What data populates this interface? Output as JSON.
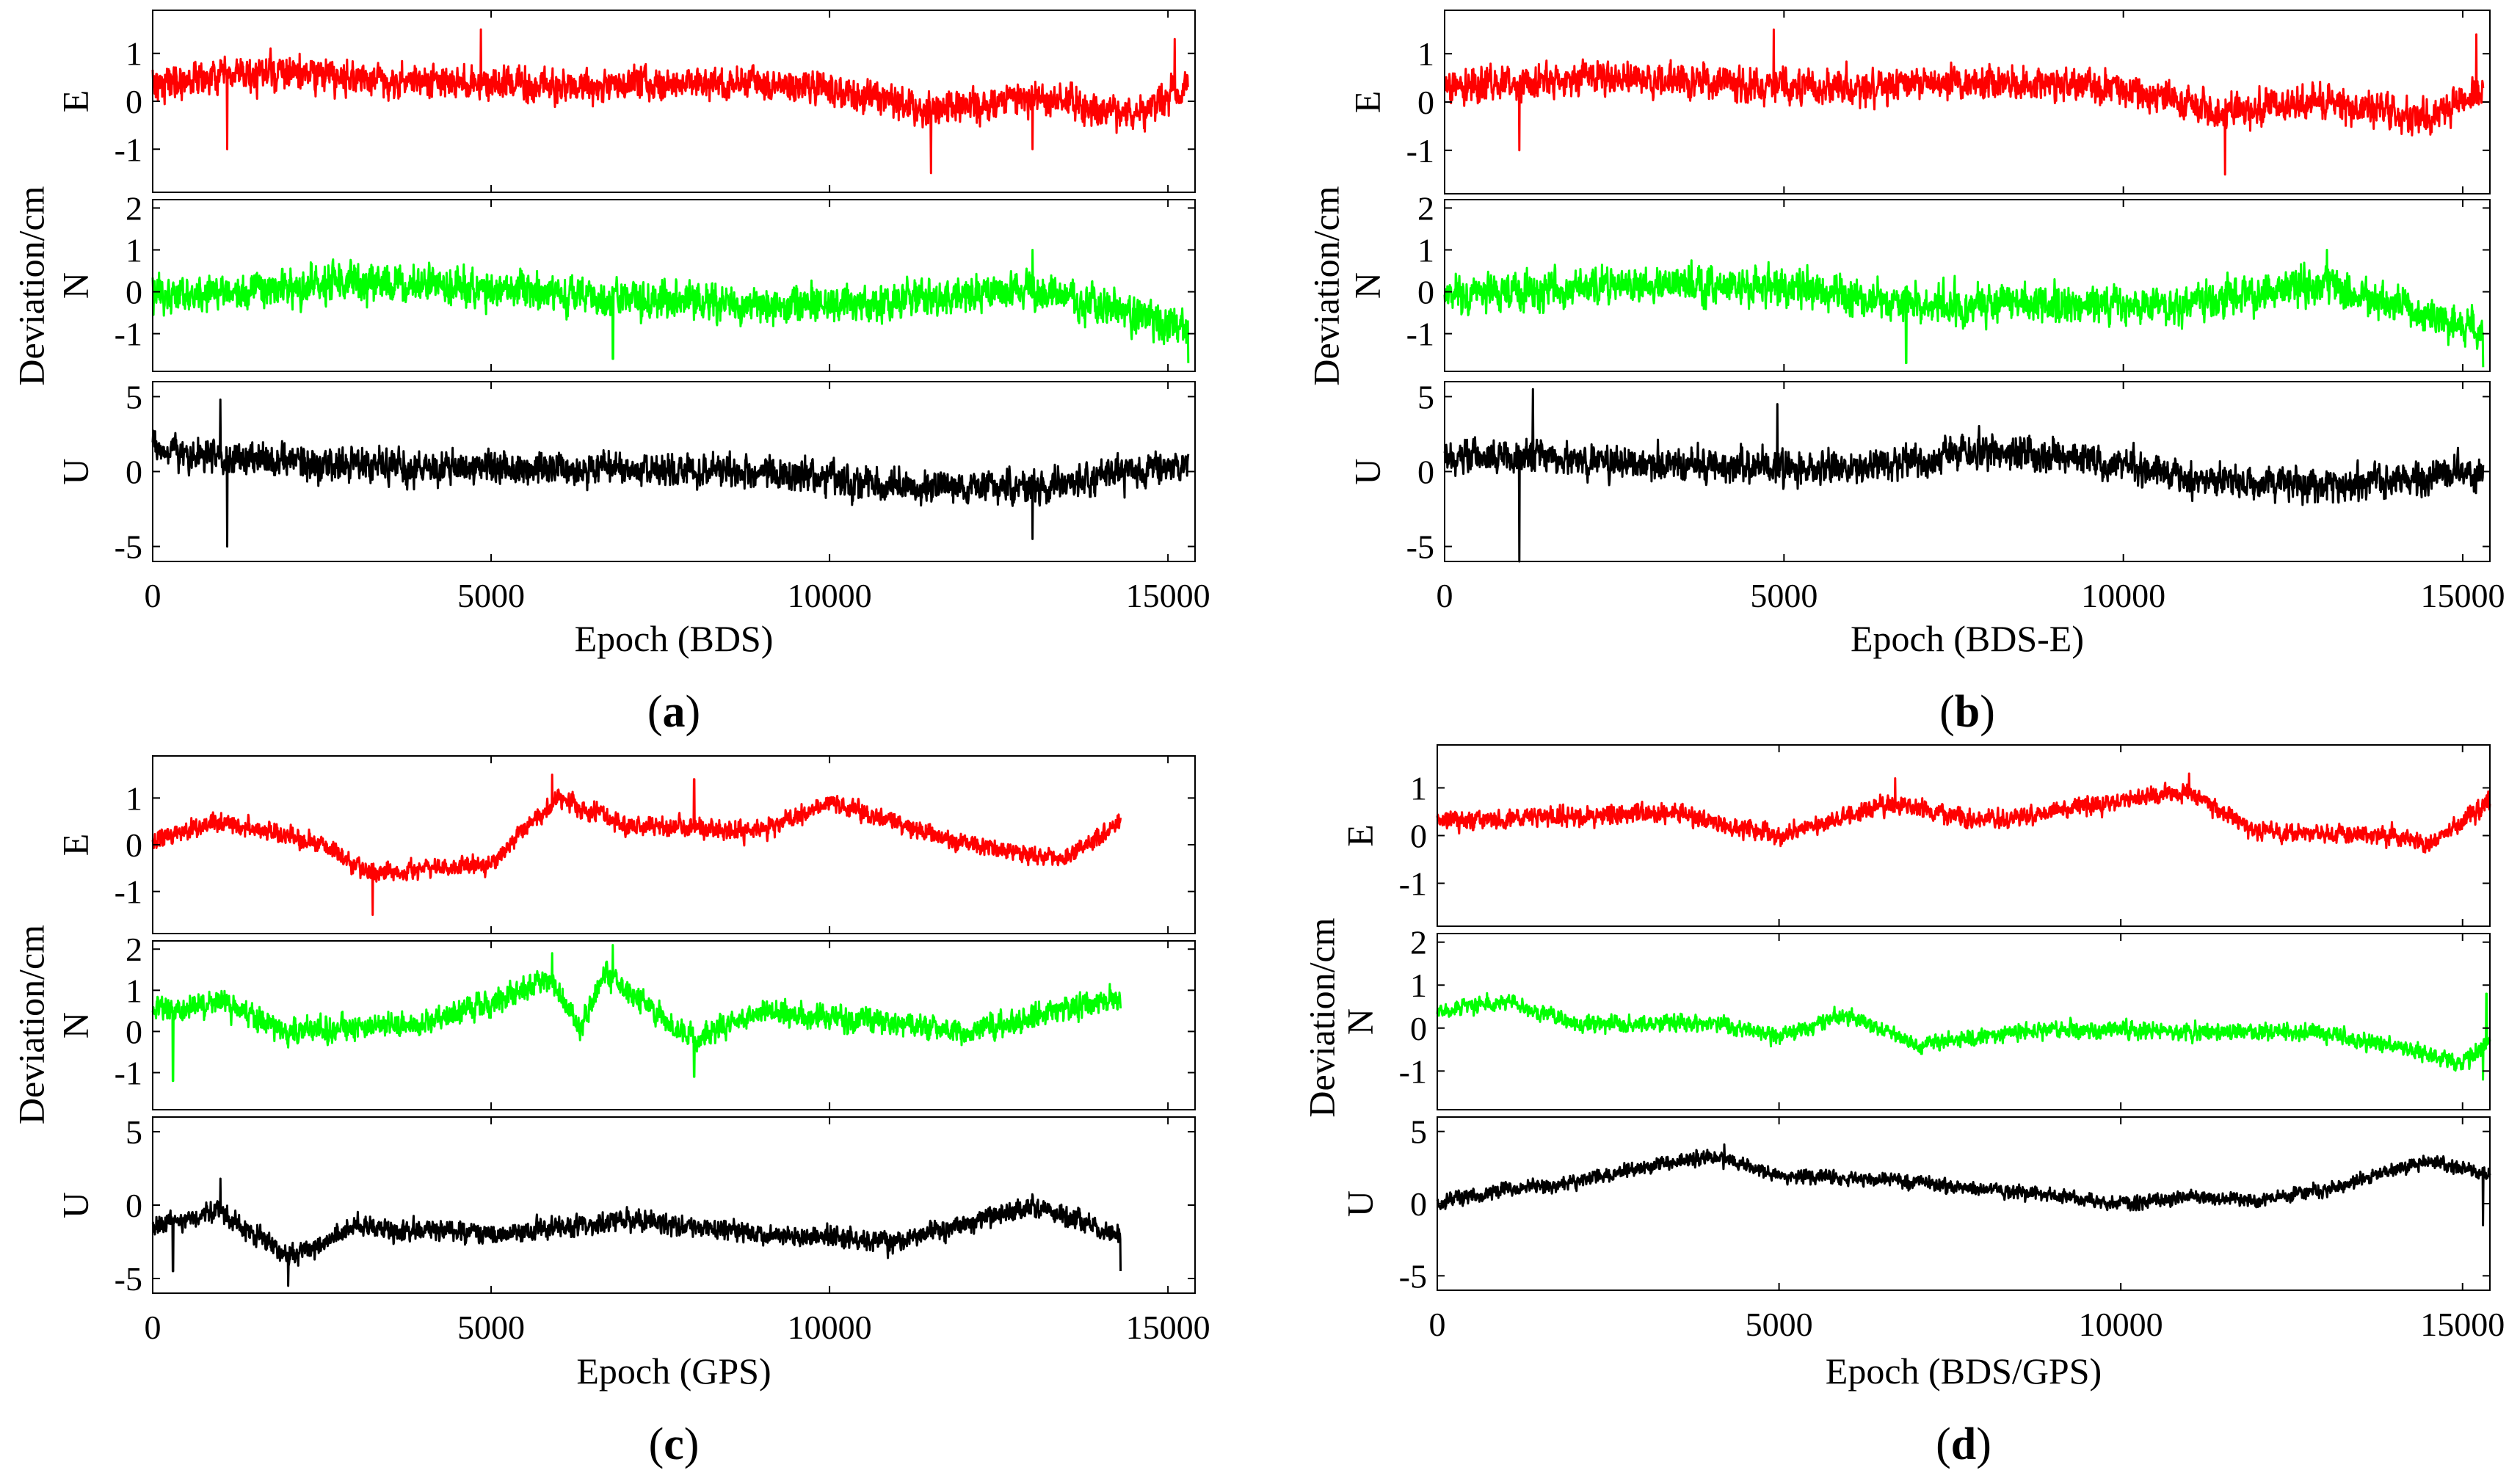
{
  "chart_data": [
    {
      "type": "line",
      "panel_label": "(a)",
      "ylabel": "Deviation/cm",
      "xlabel": "Epoch (BDS)",
      "xlim": [
        0,
        15400
      ],
      "xticks": [
        0,
        5000,
        10000,
        15000
      ],
      "x_end": 15300,
      "series": [
        {
          "name": "E",
          "color": "#ff0000",
          "ylim": [
            -1.9,
            1.9
          ],
          "yticks": [
            -1,
            0,
            1
          ],
          "profile": [
            [
              0,
              0.4
            ],
            [
              2000,
              0.6
            ],
            [
              4000,
              0.4
            ],
            [
              6000,
              0.3
            ],
            [
              8000,
              0.4
            ],
            [
              10000,
              0.3
            ],
            [
              11500,
              -0.2
            ],
            [
              13000,
              0.1
            ],
            [
              14500,
              -0.3
            ],
            [
              15300,
              0.3
            ]
          ],
          "noise": 0.35,
          "spikes": [
            [
              1100,
              -1.0
            ],
            [
              4850,
              1.5
            ],
            [
              11500,
              -1.5
            ],
            [
              13000,
              -1.0
            ],
            [
              15100,
              1.3
            ]
          ]
        },
        {
          "name": "N",
          "color": "#00ff00",
          "ylim": [
            -1.9,
            2.2
          ],
          "yticks": [
            -1,
            0,
            1,
            2
          ],
          "profile": [
            [
              0,
              -0.1
            ],
            [
              3000,
              0.2
            ],
            [
              5000,
              0.1
            ],
            [
              7000,
              -0.2
            ],
            [
              9000,
              -0.3
            ],
            [
              11000,
              -0.2
            ],
            [
              13000,
              0.1
            ],
            [
              15300,
              -0.9
            ]
          ],
          "noise": 0.45,
          "spikes": [
            [
              6800,
              -1.6
            ],
            [
              13000,
              1.0
            ],
            [
              15300,
              -1.7
            ]
          ]
        },
        {
          "name": "U",
          "color": "#000000",
          "ylim": [
            -6,
            6
          ],
          "yticks": [
            -5,
            0,
            5
          ],
          "profile": [
            [
              0,
              1.5
            ],
            [
              1000,
              1.0
            ],
            [
              3000,
              0.3
            ],
            [
              6000,
              0.2
            ],
            [
              9000,
              0.0
            ],
            [
              11000,
              -1.0
            ],
            [
              13000,
              -1.0
            ],
            [
              15300,
              0.5
            ]
          ],
          "noise": 1.1,
          "spikes": [
            [
              1100,
              -5.0
            ],
            [
              13000,
              -4.5
            ],
            [
              1000,
              4.8
            ]
          ]
        }
      ]
    },
    {
      "type": "line",
      "panel_label": "(b)",
      "ylabel": "Deviation/cm",
      "xlabel": "Epoch (BDS-E)",
      "xlim": [
        0,
        15400
      ],
      "xticks": [
        0,
        5000,
        10000,
        15000
      ],
      "x_end": 15300,
      "series": [
        {
          "name": "E",
          "color": "#ff0000",
          "ylim": [
            -1.9,
            1.9
          ],
          "yticks": [
            -1,
            0,
            1
          ],
          "profile": [
            [
              0,
              0.3
            ],
            [
              2000,
              0.5
            ],
            [
              4000,
              0.4
            ],
            [
              6000,
              0.3
            ],
            [
              8000,
              0.4
            ],
            [
              10000,
              0.3
            ],
            [
              11500,
              -0.2
            ],
            [
              13000,
              0.0
            ],
            [
              14500,
              -0.3
            ],
            [
              15300,
              0.3
            ]
          ],
          "noise": 0.35,
          "spikes": [
            [
              1100,
              -1.0
            ],
            [
              4850,
              1.5
            ],
            [
              11500,
              -1.5
            ],
            [
              15200,
              1.4
            ]
          ]
        },
        {
          "name": "N",
          "color": "#00ff00",
          "ylim": [
            -1.9,
            2.2
          ],
          "yticks": [
            -1,
            0,
            1,
            2
          ],
          "profile": [
            [
              0,
              -0.1
            ],
            [
              3000,
              0.2
            ],
            [
              5000,
              0.1
            ],
            [
              7000,
              -0.3
            ],
            [
              9000,
              -0.3
            ],
            [
              11000,
              -0.3
            ],
            [
              13000,
              0.2
            ],
            [
              15300,
              -1.0
            ]
          ],
          "noise": 0.45,
          "spikes": [
            [
              6800,
              -1.7
            ],
            [
              13000,
              1.0
            ],
            [
              15300,
              -1.8
            ]
          ]
        },
        {
          "name": "U",
          "color": "#000000",
          "ylim": [
            -6,
            6
          ],
          "yticks": [
            -5,
            0,
            5
          ],
          "profile": [
            [
              0,
              1.0
            ],
            [
              1500,
              1.0
            ],
            [
              3000,
              0.5
            ],
            [
              6000,
              0.2
            ],
            [
              8000,
              1.5
            ],
            [
              10000,
              0.5
            ],
            [
              11000,
              -0.5
            ],
            [
              13000,
              -1.0
            ],
            [
              15300,
              0.0
            ]
          ],
          "noise": 1.1,
          "spikes": [
            [
              1100,
              -6.0
            ],
            [
              1300,
              5.5
            ],
            [
              4900,
              4.5
            ]
          ]
        }
      ]
    },
    {
      "type": "line",
      "panel_label": "(c)",
      "ylabel": "Deviation/cm",
      "xlabel": "Epoch (GPS)",
      "xlim": [
        0,
        15400
      ],
      "xticks": [
        0,
        5000,
        10000,
        15000
      ],
      "x_end": 14300,
      "series": [
        {
          "name": "E",
          "color": "#ff0000",
          "ylim": [
            -1.9,
            1.9
          ],
          "yticks": [
            -1,
            0,
            1
          ],
          "profile": [
            [
              0,
              0.1
            ],
            [
              1000,
              0.5
            ],
            [
              2500,
              0.0
            ],
            [
              3200,
              -0.6
            ],
            [
              5000,
              -0.4
            ],
            [
              6000,
              1.0
            ],
            [
              7000,
              0.4
            ],
            [
              9000,
              0.3
            ],
            [
              10000,
              0.9
            ],
            [
              12000,
              0.0
            ],
            [
              13500,
              -0.3
            ],
            [
              14300,
              0.5
            ]
          ],
          "noise": 0.2,
          "spikes": [
            [
              3250,
              -1.5
            ],
            [
              5900,
              1.5
            ],
            [
              8000,
              1.4
            ]
          ]
        },
        {
          "name": "N",
          "color": "#00ff00",
          "ylim": [
            -1.9,
            2.2
          ],
          "yticks": [
            -1,
            0,
            1,
            2
          ],
          "profile": [
            [
              0,
              0.5
            ],
            [
              1000,
              0.7
            ],
            [
              2000,
              0.0
            ],
            [
              4000,
              0.2
            ],
            [
              5000,
              0.7
            ],
            [
              5900,
              1.3
            ],
            [
              6300,
              0.0
            ],
            [
              6700,
              1.4
            ],
            [
              8000,
              -0.2
            ],
            [
              9000,
              0.5
            ],
            [
              10500,
              0.3
            ],
            [
              12000,
              0.0
            ],
            [
              14300,
              0.8
            ]
          ],
          "noise": 0.3,
          "spikes": [
            [
              300,
              -1.2
            ],
            [
              5900,
              1.9
            ],
            [
              6800,
              2.1
            ],
            [
              8000,
              -1.1
            ]
          ]
        },
        {
          "name": "U",
          "color": "#000000",
          "ylim": [
            -6,
            6
          ],
          "yticks": [
            -5,
            0,
            5
          ],
          "profile": [
            [
              0,
              -1.5
            ],
            [
              1000,
              -0.5
            ],
            [
              2000,
              -3.5
            ],
            [
              3000,
              -1.5
            ],
            [
              5000,
              -2.0
            ],
            [
              7000,
              -1.0
            ],
            [
              9000,
              -2.0
            ],
            [
              11000,
              -2.5
            ],
            [
              13000,
              0.0
            ],
            [
              14300,
              -2.0
            ]
          ],
          "noise": 0.7,
          "spikes": [
            [
              300,
              -4.5
            ],
            [
              1000,
              1.8
            ],
            [
              2000,
              -5.5
            ],
            [
              14300,
              -4.5
            ]
          ]
        }
      ]
    },
    {
      "type": "line",
      "panel_label": "(d)",
      "ylabel": "Deviation/cm",
      "xlabel": "Epoch (BDS/GPS)",
      "xlim": [
        0,
        15400
      ],
      "xticks": [
        0,
        5000,
        10000,
        15000
      ],
      "x_end": 15400,
      "series": [
        {
          "name": "E",
          "color": "#ff0000",
          "ylim": [
            -1.9,
            1.9
          ],
          "yticks": [
            -1,
            0,
            1
          ],
          "profile": [
            [
              0,
              0.3
            ],
            [
              2000,
              0.4
            ],
            [
              3500,
              0.5
            ],
            [
              4000,
              0.3
            ],
            [
              5000,
              0.0
            ],
            [
              6700,
              0.7
            ],
            [
              8000,
              0.3
            ],
            [
              11000,
              0.9
            ],
            [
              12000,
              0.1
            ],
            [
              14000,
              0.0
            ],
            [
              14500,
              -0.2
            ],
            [
              15400,
              0.7
            ]
          ],
          "noise": 0.2,
          "spikes": [
            [
              6700,
              1.2
            ],
            [
              11000,
              1.3
            ]
          ]
        },
        {
          "name": "N",
          "color": "#00ff00",
          "ylim": [
            -1.9,
            2.2
          ],
          "yticks": [
            -1,
            0,
            1,
            2
          ],
          "profile": [
            [
              0,
              0.4
            ],
            [
              1000,
              0.6
            ],
            [
              2000,
              0.1
            ],
            [
              4000,
              0.1
            ],
            [
              5000,
              -0.2
            ],
            [
              6000,
              0.3
            ],
            [
              7000,
              -0.4
            ],
            [
              9000,
              0.0
            ],
            [
              11000,
              -0.1
            ],
            [
              13000,
              -0.1
            ],
            [
              15000,
              -0.8
            ],
            [
              15400,
              -0.3
            ]
          ],
          "noise": 0.2,
          "spikes": [
            [
              15300,
              -1.2
            ],
            [
              15350,
              0.8
            ]
          ]
        },
        {
          "name": "U",
          "color": "#000000",
          "ylim": [
            -6,
            6
          ],
          "yticks": [
            -5,
            0,
            5
          ],
          "profile": [
            [
              0,
              0.0
            ],
            [
              1000,
              1.0
            ],
            [
              2000,
              1.5
            ],
            [
              3000,
              2.5
            ],
            [
              4000,
              3.3
            ],
            [
              5000,
              2.0
            ],
            [
              7000,
              1.5
            ],
            [
              9000,
              0.5
            ],
            [
              10000,
              0.0
            ],
            [
              11000,
              0.5
            ],
            [
              12000,
              0.3
            ],
            [
              13000,
              1.0
            ],
            [
              14500,
              3.0
            ],
            [
              15400,
              2.0
            ]
          ],
          "noise": 0.5,
          "spikes": [
            [
              15300,
              -1.5
            ],
            [
              4200,
              4.1
            ]
          ]
        }
      ]
    }
  ]
}
